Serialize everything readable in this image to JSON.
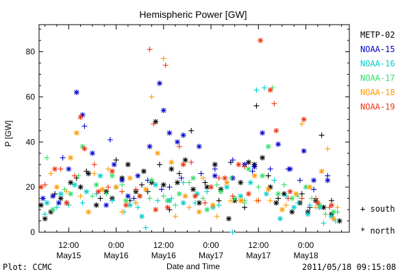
{
  "chart_data": {
    "type": "scatter",
    "title": "Hemispheric Power [GW]",
    "ylabel": "P [GW]",
    "xlabel": "Date and Time",
    "ylim": [
      0,
      92
    ],
    "y_ticks": [
      0,
      20,
      40,
      60,
      80
    ],
    "xlim_hours": [
      -7.5,
      71
    ],
    "x_ticks": [
      {
        "hour": 0,
        "time": "12:00",
        "date": "May15"
      },
      {
        "hour": 12,
        "time": "0:00",
        "date": "May16"
      },
      {
        "hour": 24,
        "time": "12:00",
        "date": "May16"
      },
      {
        "hour": 36,
        "time": "0:00",
        "date": "May17"
      },
      {
        "hour": 48,
        "time": "12:00",
        "date": "May17"
      },
      {
        "hour": 60,
        "time": "0:00",
        "date": "May18"
      }
    ],
    "markers": {
      "south": "+",
      "north": "*"
    },
    "marker_labels": {
      "south": "south",
      "north": "north"
    },
    "series": [
      {
        "name": "METP-02",
        "color": "#000000",
        "south": [
          [
            -3.5,
            17
          ],
          [
            -0.5,
            13
          ],
          [
            2,
            24
          ],
          [
            4.5,
            27
          ],
          [
            8,
            15
          ],
          [
            12,
            32
          ],
          [
            15.5,
            14
          ],
          [
            18.5,
            21
          ],
          [
            20,
            18
          ],
          [
            23,
            30
          ],
          [
            25.5,
            10
          ],
          [
            28,
            26
          ],
          [
            31,
            45
          ],
          [
            34.5,
            22
          ],
          [
            38,
            14
          ],
          [
            41,
            31
          ],
          [
            44.5,
            11
          ],
          [
            47.5,
            56
          ],
          [
            50.5,
            25
          ],
          [
            53,
            15
          ],
          [
            56,
            28
          ],
          [
            59,
            17
          ],
          [
            61,
            11
          ],
          [
            64,
            43
          ],
          [
            66.5,
            14
          ]
        ],
        "north": [
          [
            -7,
            12
          ],
          [
            -4.5,
            9
          ],
          [
            -2,
            15
          ],
          [
            0.5,
            22
          ],
          [
            3,
            20
          ],
          [
            5,
            26
          ],
          [
            7,
            12
          ],
          [
            9.5,
            18
          ],
          [
            11,
            15
          ],
          [
            13.5,
            24
          ],
          [
            15,
            30
          ],
          [
            17,
            18
          ],
          [
            19,
            27
          ],
          [
            21,
            22
          ],
          [
            22,
            49
          ],
          [
            24,
            21
          ],
          [
            26,
            28
          ],
          [
            27.5,
            22
          ],
          [
            29.5,
            32
          ],
          [
            31.5,
            19
          ],
          [
            33,
            13
          ],
          [
            35,
            20
          ],
          [
            37,
            30
          ],
          [
            38.5,
            19
          ],
          [
            40.5,
            6
          ],
          [
            42,
            14
          ],
          [
            43.5,
            22
          ],
          [
            45.5,
            31
          ],
          [
            47,
            30
          ],
          [
            49,
            33
          ],
          [
            51,
            20
          ],
          [
            52.5,
            13
          ],
          [
            54.5,
            17
          ],
          [
            56.5,
            9
          ],
          [
            58.5,
            13
          ],
          [
            60.5,
            9
          ],
          [
            62.5,
            14
          ],
          [
            64.5,
            11
          ],
          [
            66.5,
            8
          ],
          [
            68.5,
            5
          ],
          [
            -6,
            6
          ]
        ]
      },
      {
        "name": "NOAA-15",
        "color": "#0000cc",
        "south": [
          [
            -1.5,
            33
          ],
          [
            4,
            47
          ],
          [
            10.5,
            41
          ],
          [
            16.5,
            15
          ],
          [
            20,
            23
          ],
          [
            23.5,
            19
          ],
          [
            25.5,
            20
          ],
          [
            28.5,
            24
          ],
          [
            33.5,
            26
          ],
          [
            37,
            28
          ],
          [
            41.5,
            32
          ],
          [
            46.5,
            27
          ],
          [
            51,
            28
          ],
          [
            55.5,
            28
          ],
          [
            58.5,
            23
          ],
          [
            62,
            19
          ],
          [
            65.5,
            25
          ]
        ],
        "north": [
          [
            -6.5,
            15
          ],
          [
            -4,
            16
          ],
          [
            -2.5,
            13
          ],
          [
            0,
            28
          ],
          [
            2,
            62
          ],
          [
            3.5,
            52
          ],
          [
            6,
            35
          ],
          [
            9.5,
            12
          ],
          [
            11.5,
            30
          ],
          [
            13.5,
            23
          ],
          [
            15,
            16
          ],
          [
            17.5,
            25
          ],
          [
            20.5,
            38
          ],
          [
            23,
            66
          ],
          [
            24,
            54
          ],
          [
            25.5,
            44
          ],
          [
            27.5,
            40
          ],
          [
            29,
            43
          ],
          [
            33,
            38
          ],
          [
            37,
            25
          ],
          [
            41.5,
            24
          ],
          [
            44.5,
            30
          ],
          [
            47,
            29
          ],
          [
            49,
            44
          ],
          [
            53,
            39
          ],
          [
            56,
            28
          ],
          [
            59.5,
            36
          ],
          [
            62,
            23
          ],
          [
            65.5,
            23
          ]
        ]
      },
      {
        "name": "NOAA-16",
        "color": "#00cccc",
        "south": [
          [
            -6,
            8
          ],
          [
            -3,
            11
          ],
          [
            0,
            12
          ],
          [
            3.5,
            13
          ],
          [
            7,
            17
          ],
          [
            11,
            14
          ],
          [
            14,
            9
          ],
          [
            17.5,
            11
          ],
          [
            19.5,
            2
          ],
          [
            22.5,
            14
          ],
          [
            26,
            15
          ],
          [
            29,
            22
          ],
          [
            32,
            13
          ],
          [
            35,
            18
          ],
          [
            38,
            12
          ],
          [
            41.5,
            0
          ],
          [
            44.5,
            14
          ],
          [
            47.5,
            63
          ],
          [
            49.5,
            64
          ],
          [
            52,
            23
          ],
          [
            55,
            16
          ],
          [
            58,
            13
          ],
          [
            61,
            12
          ],
          [
            64.5,
            4
          ],
          [
            67.5,
            5
          ]
        ],
        "north": [
          [
            -5.5,
            13
          ],
          [
            -2,
            17
          ],
          [
            1.5,
            21
          ],
          [
            4.5,
            18
          ],
          [
            8,
            25
          ],
          [
            12,
            20
          ],
          [
            15.5,
            12
          ],
          [
            18.5,
            7
          ],
          [
            22,
            21
          ],
          [
            25.5,
            14
          ],
          [
            29,
            13
          ],
          [
            32.5,
            17
          ],
          [
            36.5,
            11
          ],
          [
            40,
            20
          ],
          [
            43.5,
            16
          ],
          [
            46,
            22
          ],
          [
            50,
            17
          ],
          [
            53.5,
            6
          ],
          [
            57,
            11
          ],
          [
            60.5,
            8
          ],
          [
            63.5,
            11
          ],
          [
            66.5,
            7
          ]
        ]
      },
      {
        "name": "NOAA-17",
        "color": "#33dd66",
        "south": [
          [
            -5.5,
            33
          ],
          [
            -1,
            19
          ],
          [
            2.5,
            25
          ],
          [
            6,
            16
          ],
          [
            9.5,
            17
          ],
          [
            13.5,
            21
          ],
          [
            17,
            13
          ],
          [
            20.5,
            15
          ],
          [
            24,
            16
          ],
          [
            27,
            12
          ],
          [
            30.5,
            22
          ],
          [
            34,
            15
          ],
          [
            37.5,
            21
          ],
          [
            41,
            24
          ],
          [
            44.5,
            13
          ],
          [
            48,
            20
          ],
          [
            51.5,
            64
          ],
          [
            54.5,
            21
          ],
          [
            58,
            16
          ],
          [
            61.5,
            15
          ],
          [
            65,
            8
          ],
          [
            68,
            9
          ]
        ],
        "north": [
          [
            -4,
            10
          ],
          [
            0.5,
            17
          ],
          [
            3.5,
            38
          ],
          [
            7,
            21
          ],
          [
            11,
            25
          ],
          [
            14.5,
            14
          ],
          [
            18,
            16
          ],
          [
            21,
            23
          ],
          [
            25,
            14
          ],
          [
            28,
            17
          ],
          [
            31.5,
            24
          ],
          [
            35,
            10
          ],
          [
            38.5,
            18
          ],
          [
            42,
            15
          ],
          [
            45.5,
            28
          ],
          [
            49,
            25
          ],
          [
            50.5,
            38
          ],
          [
            53,
            17
          ],
          [
            56.5,
            15
          ],
          [
            60,
            20
          ],
          [
            63.5,
            12
          ],
          [
            67,
            9
          ]
        ]
      },
      {
        "name": "NOAA-18",
        "color": "#ff9900",
        "south": [
          [
            -4.5,
            26
          ],
          [
            -0.5,
            18
          ],
          [
            3,
            16
          ],
          [
            6.5,
            26
          ],
          [
            10,
            28
          ],
          [
            13.5,
            9
          ],
          [
            17,
            13
          ],
          [
            21,
            60
          ],
          [
            24,
            77
          ],
          [
            27,
            7
          ],
          [
            30.5,
            11
          ],
          [
            34,
            24
          ],
          [
            37.5,
            7
          ],
          [
            41,
            14
          ],
          [
            44,
            14
          ],
          [
            47.5,
            14
          ],
          [
            51,
            14
          ],
          [
            55,
            12
          ],
          [
            59,
            48
          ],
          [
            62.5,
            11
          ],
          [
            65.5,
            37
          ],
          [
            68,
            11
          ]
        ],
        "north": [
          [
            -3,
            20
          ],
          [
            0.5,
            33
          ],
          [
            2,
            44
          ],
          [
            5,
            9
          ],
          [
            8.5,
            19
          ],
          [
            12,
            20
          ],
          [
            15.5,
            24
          ],
          [
            19.5,
            19
          ],
          [
            22.5,
            35
          ],
          [
            26,
            31
          ],
          [
            29.5,
            16
          ],
          [
            33,
            9
          ],
          [
            36.5,
            12
          ],
          [
            40,
            22
          ],
          [
            43.5,
            14
          ],
          [
            47,
            25
          ],
          [
            50.5,
            19
          ],
          [
            54,
            10
          ],
          [
            57.5,
            17
          ],
          [
            61,
            20
          ],
          [
            64,
            27
          ],
          [
            67,
            6
          ]
        ]
      },
      {
        "name": "NOAA-19",
        "color": "#ee3311",
        "south": [
          [
            -6,
            21
          ],
          [
            -2,
            28
          ],
          [
            1.5,
            25
          ],
          [
            6.5,
            30
          ],
          [
            10,
            20
          ],
          [
            13.5,
            18
          ],
          [
            17,
            19
          ],
          [
            20.5,
            81
          ],
          [
            21.5,
            48
          ],
          [
            24.5,
            74
          ],
          [
            28,
            38
          ],
          [
            31,
            31
          ],
          [
            34.5,
            13
          ],
          [
            38,
            24
          ],
          [
            41.5,
            16
          ],
          [
            44.5,
            29
          ],
          [
            48,
            14
          ],
          [
            52,
            57
          ],
          [
            55.5,
            15
          ],
          [
            59,
            15
          ],
          [
            62.5,
            15
          ],
          [
            66,
            11
          ]
        ],
        "north": [
          [
            -7,
            20
          ],
          [
            -3.5,
            28
          ],
          [
            -0.5,
            13
          ],
          [
            3,
            51
          ],
          [
            4,
            37
          ],
          [
            7.5,
            18
          ],
          [
            11,
            27
          ],
          [
            14.5,
            12
          ],
          [
            18,
            16
          ],
          [
            22,
            10
          ],
          [
            25,
            11
          ],
          [
            29,
            30
          ],
          [
            32,
            16
          ],
          [
            36,
            20
          ],
          [
            39.5,
            24
          ],
          [
            43,
            30
          ],
          [
            45.5,
            17
          ],
          [
            48.5,
            85
          ],
          [
            51,
            63
          ],
          [
            52.5,
            45
          ],
          [
            56,
            18
          ],
          [
            59.5,
            50
          ],
          [
            63,
            13
          ],
          [
            66.5,
            12
          ]
        ]
      }
    ]
  },
  "footer": {
    "plot_credit": "Plot: CCMC",
    "timestamp": "2011/05/18 09:15:08"
  }
}
